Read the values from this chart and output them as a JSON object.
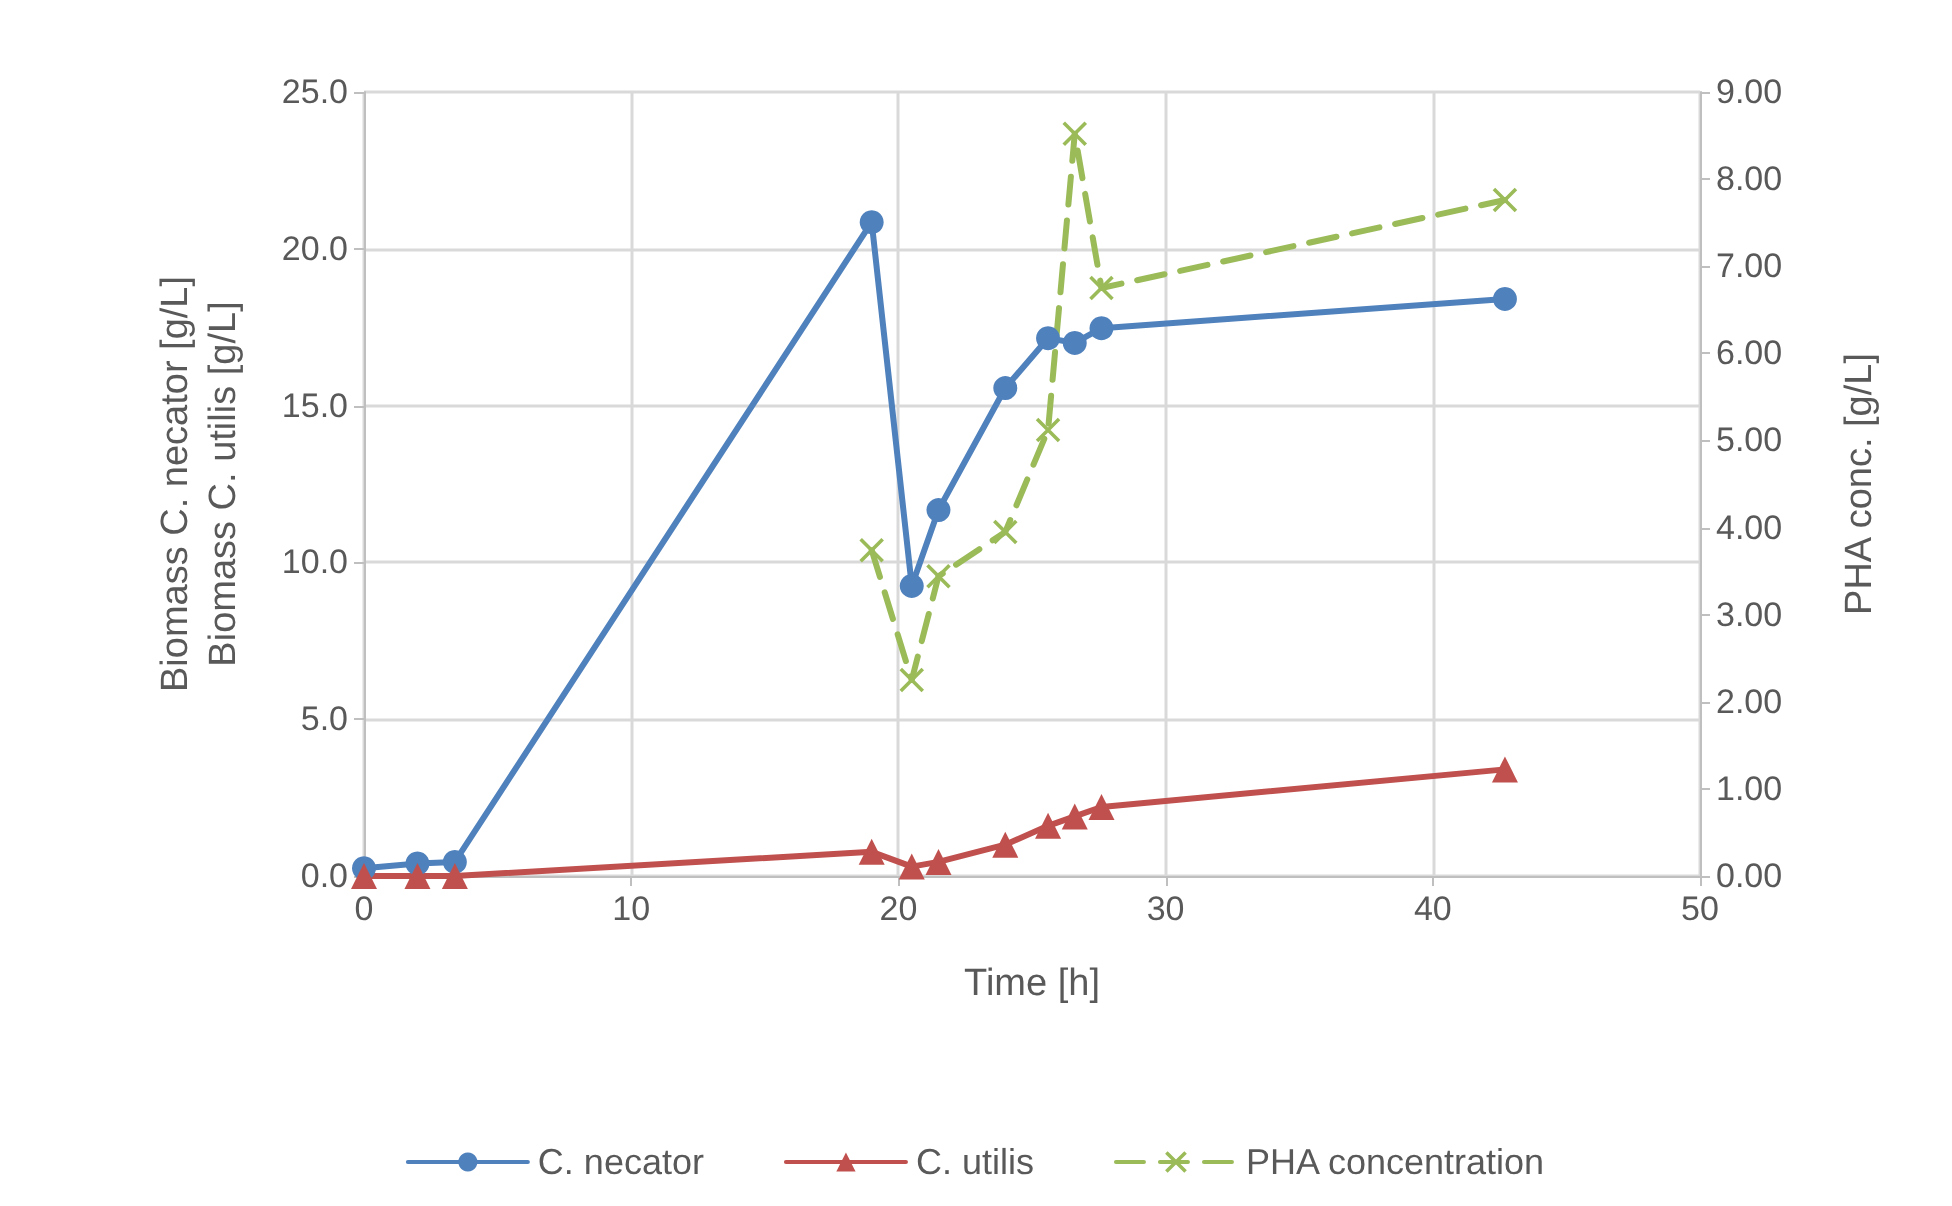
{
  "chart_data": {
    "type": "line",
    "xlabel": "Time [h]",
    "ylabel": "Biomass C. necator [g/L]\nBiomass C. utilis [g/L]",
    "y2label": "PHA conc. [g/L]",
    "xlim": [
      0,
      50
    ],
    "xticks": [
      0,
      10,
      20,
      30,
      40,
      50
    ],
    "ylim": [
      0,
      25
    ],
    "yticks": [
      {
        "value": 0,
        "label": "0.0"
      },
      {
        "value": 5,
        "label": "5.0"
      },
      {
        "value": 10,
        "label": "10.0"
      },
      {
        "value": 15,
        "label": "15.0"
      },
      {
        "value": 20,
        "label": "20.0"
      },
      {
        "value": 25,
        "label": "25.0"
      }
    ],
    "y2lim": [
      0,
      9
    ],
    "y2ticks": [
      {
        "value": 0,
        "label": "0.00"
      },
      {
        "value": 1,
        "label": "1.00"
      },
      {
        "value": 2,
        "label": "2.00"
      },
      {
        "value": 3,
        "label": "3.00"
      },
      {
        "value": 4,
        "label": "4.00"
      },
      {
        "value": 5,
        "label": "5.00"
      },
      {
        "value": 6,
        "label": "6.00"
      },
      {
        "value": 7,
        "label": "7.00"
      },
      {
        "value": 8,
        "label": "8.00"
      },
      {
        "value": 9,
        "label": "9.00"
      }
    ],
    "grid": true,
    "legend": "bottom",
    "series": [
      {
        "name": "C. necator",
        "color": "#4f81bd",
        "marker": "circle",
        "line_style": "solid",
        "x": [
          0,
          2,
          3.4,
          19,
          20.5,
          21.5,
          24,
          25.6,
          26.6,
          27.6,
          42.7
        ],
        "values": [
          0.25,
          0.4,
          0.45,
          20.85,
          9.25,
          11.67,
          15.56,
          17.15,
          17.0,
          17.47,
          18.4
        ]
      },
      {
        "name": "C. utilis",
        "color": "#c0504d",
        "marker": "triangle",
        "line_style": "solid",
        "x": [
          0,
          2,
          3.4,
          19,
          20.5,
          21.5,
          24,
          25.6,
          26.6,
          27.6,
          42.7
        ],
        "values": [
          0,
          0,
          0,
          0.77,
          0.3,
          0.45,
          1.0,
          1.6,
          1.9,
          2.2,
          3.4
        ]
      },
      {
        "name": "PHA concentration",
        "color": "#9bbb59",
        "marker": "cross",
        "line_style": "dashed",
        "axis": "y2",
        "x": [
          19,
          20.5,
          21.5,
          24,
          25.6,
          26.6,
          27.6,
          42.7
        ],
        "values": [
          3.74,
          2.25,
          3.44,
          3.95,
          5.12,
          8.52,
          6.75,
          7.76
        ]
      }
    ]
  }
}
